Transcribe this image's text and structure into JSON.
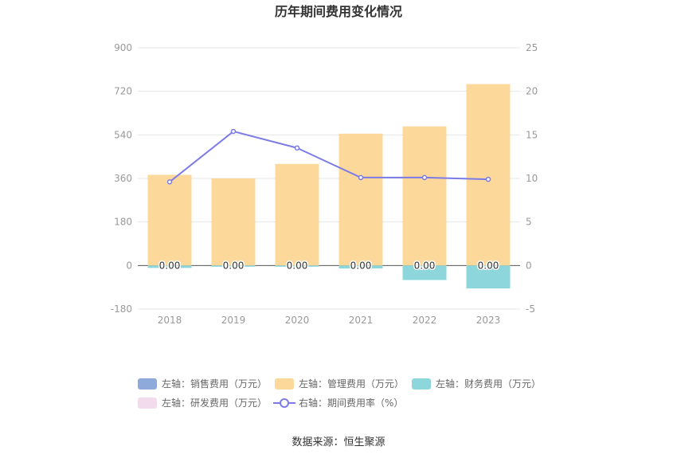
{
  "chart_data": {
    "type": "bar",
    "title": "历年期间费用变化情况",
    "categories": [
      "2018",
      "2019",
      "2020",
      "2021",
      "2022",
      "2023"
    ],
    "ylim_left": [
      -180,
      900
    ],
    "yticks_left": [
      "900",
      "720",
      "540",
      "360",
      "180",
      "0",
      "-180"
    ],
    "ylim_right": [
      -5,
      25
    ],
    "yticks_right": [
      "25",
      "20",
      "15",
      "10",
      "5",
      "0",
      "-5"
    ],
    "series": [
      {
        "name": "左轴：销售费用（万元）",
        "axis": "left",
        "type": "bar",
        "color": "#8eaadb",
        "values": [
          0,
          0,
          0,
          0,
          0,
          0
        ]
      },
      {
        "name": "左轴：管理费用（万元）",
        "axis": "left",
        "type": "bar",
        "color": "#fdd89b",
        "values": [
          375,
          360,
          420,
          545,
          575,
          750
        ]
      },
      {
        "name": "左轴：财务费用（万元）",
        "axis": "left",
        "type": "bar",
        "color": "#8dd7dc",
        "values": [
          -10,
          -5,
          -5,
          -12,
          -60,
          -95
        ]
      },
      {
        "name": "左轴：研发费用（万元）",
        "axis": "left",
        "type": "bar",
        "color": "#f2dbec",
        "values": [
          0,
          0,
          0,
          0,
          0,
          0
        ]
      },
      {
        "name": "右轴：期间费用率（%）",
        "axis": "right",
        "type": "line",
        "color": "#7b7be8",
        "values": [
          9.6,
          15.4,
          13.5,
          10.1,
          10.1,
          9.9
        ]
      }
    ],
    "data_labels": [
      "0.00",
      "0.00",
      "0.00",
      "0.00",
      "0.00",
      "0.00"
    ],
    "legend_position": "bottom",
    "grid": true
  },
  "source": "数据来源：恒生聚源"
}
